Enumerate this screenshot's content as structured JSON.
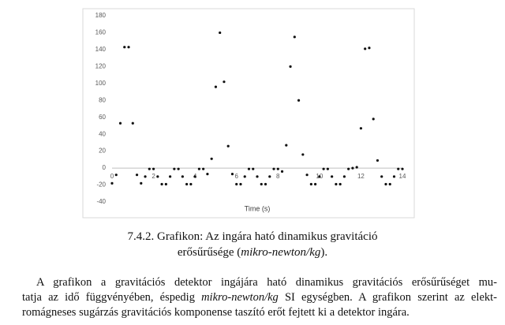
{
  "chart_data": {
    "type": "scatter",
    "x_label": "Time (s)",
    "x": [
      0,
      0.2,
      0.4,
      0.6,
      0.8,
      1.0,
      1.2,
      1.4,
      1.6,
      1.8,
      2.0,
      2.2,
      2.4,
      2.6,
      2.8,
      3.0,
      3.2,
      3.4,
      3.6,
      3.8,
      4.0,
      4.2,
      4.4,
      4.6,
      4.8,
      5.0,
      5.2,
      5.4,
      5.6,
      5.8,
      6.0,
      6.2,
      6.4,
      6.6,
      6.8,
      7.0,
      7.2,
      7.4,
      7.6,
      7.8,
      8.0,
      8.2,
      8.4,
      8.6,
      8.8,
      9.0,
      9.2,
      9.4,
      9.6,
      9.8,
      10.0,
      10.2,
      10.4,
      10.6,
      10.8,
      11.0,
      11.2,
      11.4,
      11.6,
      11.8,
      12.0,
      12.2,
      12.4,
      12.6,
      12.8,
      13.0,
      13.2,
      13.4,
      13.6,
      13.8,
      14.0
    ],
    "values": [
      -18,
      -8,
      53,
      143,
      143,
      53,
      -8,
      -18,
      -10,
      -1,
      -1,
      -10,
      -19,
      -19,
      -10,
      -1,
      -1,
      -10,
      -19,
      -19,
      -10,
      -1,
      -1,
      -7,
      11,
      96,
      160,
      102,
      26,
      -7,
      -19,
      -19,
      -10,
      -1,
      -1,
      -10,
      -19,
      -19,
      -10,
      -1,
      -1,
      -4,
      27,
      120,
      155,
      80,
      16,
      -8,
      -19,
      -19,
      -10,
      -1,
      -1,
      -10,
      -19,
      -19,
      -10,
      -1,
      0,
      1,
      47,
      141,
      142,
      58,
      9,
      -10,
      -19,
      -19,
      -10,
      -1,
      -1
    ],
    "color": "#111111",
    "xlim": [
      0,
      14
    ],
    "xticks": [
      0,
      2,
      4,
      6,
      8,
      10,
      12,
      14
    ],
    "ylim": [
      -40,
      180
    ],
    "yticks": [
      -40,
      -20,
      0,
      20,
      40,
      60,
      80,
      100,
      120,
      140,
      160,
      180
    ]
  },
  "caption": {
    "lines": [
      [
        "7.4.2. Grafikon: Az ingára ható dinamikus gravitáció"
      ],
      [
        "erősűrűsége (",
        "mikro-newton/kg",
        ")."
      ]
    ]
  },
  "paragraph": {
    "lines": [
      [
        "A grafikon a gravitációs detektor ingájára ható dinamikus gravitációs erősűrűséget mu-"
      ],
      [
        "tatja az idő függvényében, éspedig ",
        "mikro-newton/kg",
        " SI egységben. A grafikon szerint az elekt-"
      ],
      [
        "romágneses sugárzás gravitációs komponense taszító erőt fejtett ki a detektor ingára."
      ]
    ]
  }
}
